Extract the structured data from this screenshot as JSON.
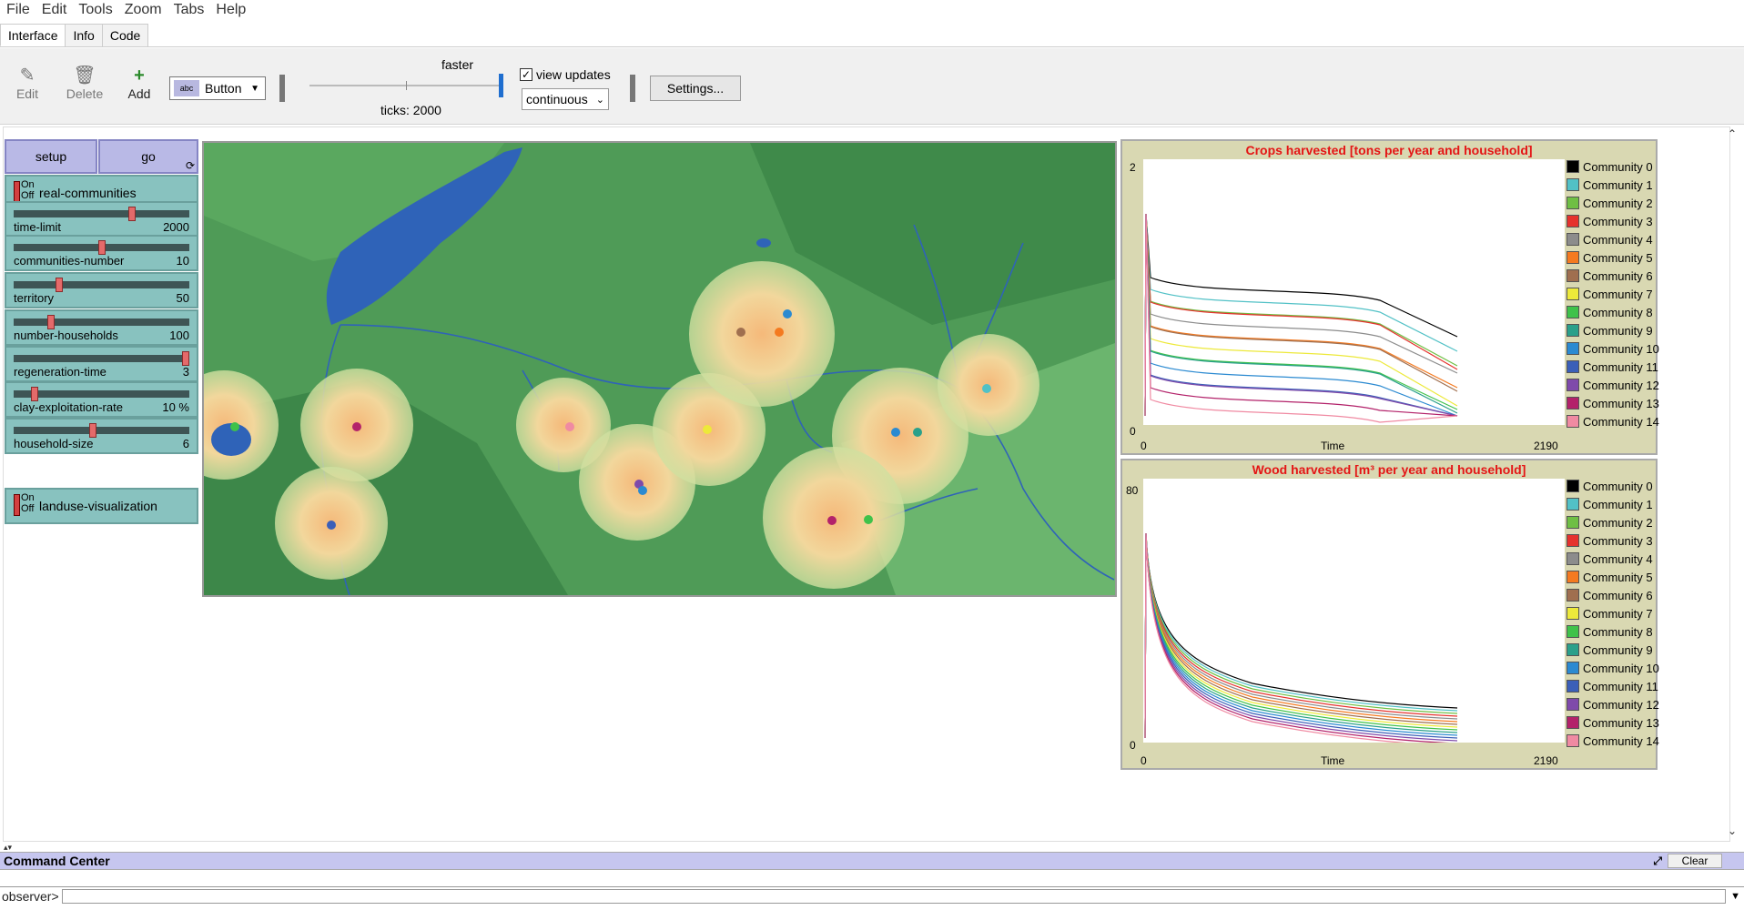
{
  "menu": [
    "File",
    "Edit",
    "Tools",
    "Zoom",
    "Tabs",
    "Help"
  ],
  "tabs": [
    "Interface",
    "Info",
    "Code"
  ],
  "toolbar": {
    "edit": "Edit",
    "delete": "Delete",
    "add": "Add",
    "widget_type": "Button",
    "widget_icon_text": "abc",
    "speed_label": "faster",
    "ticks": "ticks: 2000",
    "view_updates": "view updates",
    "update_mode": "continuous",
    "settings": "Settings..."
  },
  "buttons": {
    "setup": "setup",
    "go": "go"
  },
  "switches": [
    {
      "on": "On",
      "off": "Off",
      "label": "real-communities"
    },
    {
      "on": "On",
      "off": "Off",
      "label": "landuse-visualization"
    }
  ],
  "sliders": [
    {
      "name": "time-limit",
      "value": "2000",
      "fraction": 0.68
    },
    {
      "name": "communities-number",
      "value": "10",
      "fraction": 0.5
    },
    {
      "name": "territory",
      "value": "50",
      "fraction": 0.25
    },
    {
      "name": "number-households",
      "value": "100",
      "fraction": 0.2
    },
    {
      "name": "regeneration-time",
      "value": "3",
      "fraction": 1.0
    },
    {
      "name": "clay-exploitation-rate",
      "value": "10 %",
      "fraction": 0.1
    },
    {
      "name": "household-size",
      "value": "6",
      "fraction": 0.45
    }
  ],
  "communities": [
    {
      "name": "Community 0",
      "color": "#000000"
    },
    {
      "name": "Community 1",
      "color": "#52c1c6"
    },
    {
      "name": "Community 2",
      "color": "#6fbf44"
    },
    {
      "name": "Community 3",
      "color": "#e5322d"
    },
    {
      "name": "Community 4",
      "color": "#8c8c8c"
    },
    {
      "name": "Community 5",
      "color": "#f47a20"
    },
    {
      "name": "Community 6",
      "color": "#a06f4f"
    },
    {
      "name": "Community 7",
      "color": "#ede93a"
    },
    {
      "name": "Community 8",
      "color": "#3fc24a"
    },
    {
      "name": "Community 9",
      "color": "#2aa08a"
    },
    {
      "name": "Community 10",
      "color": "#2b8ad1"
    },
    {
      "name": "Community 11",
      "color": "#3b5fb8"
    },
    {
      "name": "Community 12",
      "color": "#7f4aaa"
    },
    {
      "name": "Community 13",
      "color": "#b3226a"
    },
    {
      "name": "Community 14",
      "color": "#f08aa2"
    }
  ],
  "plots": {
    "crops": {
      "title": "Crops harvested [tons per year and household]",
      "ymax": "2",
      "ymin": "0",
      "xmin": "0",
      "xmax": "2190",
      "xlabel": "Time"
    },
    "wood": {
      "title": "Wood harvested [m³ per year and household]",
      "ymax": "80",
      "ymin": "0",
      "xmin": "0",
      "xmax": "2190",
      "xlabel": "Time"
    }
  },
  "command_center": {
    "title": "Command Center",
    "clear": "Clear",
    "observer": "observer>"
  }
}
